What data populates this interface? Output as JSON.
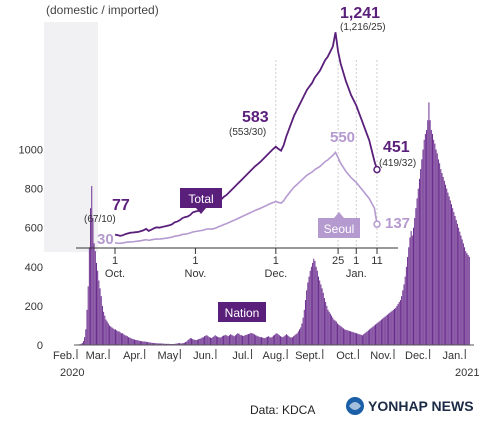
{
  "subtitle": "(domestic / imported)",
  "source": "Data: KDCA",
  "brand": "YONHAP NEWS",
  "colors": {
    "total": "#5a1f7a",
    "seoul": "#b59ad0",
    "nation_bar": "#6b2d8e",
    "tag_total": "#5a1f7a",
    "tag_seoul": "#b59ad0",
    "axis_text": "#333333",
    "panel": "#f1f1f3"
  },
  "chart_data": [
    {
      "type": "bar",
      "name": "nation",
      "series_label": "Nation",
      "yticks": [
        "1000",
        "800",
        "600",
        "400",
        "200",
        "0"
      ],
      "ytick_values": [
        1000,
        800,
        600,
        400,
        200,
        0
      ],
      "ylim": [
        0,
        1100
      ],
      "x_labels": [
        "Feb.",
        "Mar.",
        "Apr.",
        "May",
        "Jun.",
        "Jul.",
        "Aug.",
        "Sept.",
        "Oct.",
        "Nov.",
        "Dec.",
        "Jan."
      ],
      "year_labels": {
        "start": "2020",
        "end": "2021"
      },
      "segments": [
        {
          "period": "Feb.",
          "values": [
            2,
            3,
            4,
            6,
            10,
            20,
            40,
            80,
            180,
            300,
            500,
            700,
            813,
            650,
            520,
            480,
            420,
            380,
            330,
            290,
            250,
            200,
            170,
            150,
            130,
            120,
            110
          ]
        },
        {
          "period": "Mar.",
          "values": [
            100,
            95,
            90,
            85,
            80,
            80,
            75,
            70,
            70,
            65,
            60,
            60,
            55,
            50,
            48,
            45,
            40,
            38,
            35,
            32,
            30,
            28,
            26,
            25,
            24,
            22,
            20,
            20,
            18,
            18
          ]
        },
        {
          "period": "Apr.",
          "values": [
            18,
            16,
            15,
            14,
            13,
            12,
            11,
            10,
            10,
            9,
            9,
            8,
            8,
            8,
            8,
            7,
            7,
            6,
            6,
            6,
            6,
            5,
            5,
            5,
            5,
            6,
            7,
            8,
            9,
            10
          ]
        },
        {
          "period": "May",
          "values": [
            8,
            8,
            10,
            12,
            15,
            18,
            25,
            30,
            35,
            34,
            30,
            28,
            26,
            25,
            27,
            30,
            32,
            34,
            38,
            40,
            45,
            48,
            50,
            45,
            40,
            38,
            36,
            40,
            45,
            50
          ]
        },
        {
          "period": "Jun.",
          "values": [
            45,
            42,
            40,
            38,
            40,
            45,
            48,
            50,
            52,
            48,
            45,
            50,
            55,
            52,
            48,
            45,
            50,
            55,
            60,
            58,
            52,
            50,
            48,
            46,
            50,
            52,
            54,
            56,
            58,
            62
          ]
        },
        {
          "period": "Jul.",
          "values": [
            60,
            58,
            55,
            50,
            48,
            45,
            42,
            40,
            40,
            38,
            36,
            35,
            40,
            42,
            45,
            40,
            38,
            42,
            48,
            52,
            58,
            60,
            55,
            50,
            45,
            42,
            40,
            45,
            50,
            55
          ]
        },
        {
          "period": "Aug.",
          "values": [
            50,
            45,
            40,
            38,
            40,
            45,
            50,
            55,
            60,
            70,
            80,
            90,
            110,
            140,
            180,
            230,
            280,
            320,
            350,
            380,
            400,
            420,
            441,
            430,
            400,
            380,
            350,
            330,
            310,
            290
          ]
        },
        {
          "period": "Sept.",
          "values": [
            267,
            240,
            220,
            200,
            180,
            170,
            160,
            150,
            140,
            130,
            125,
            120,
            110,
            105,
            100,
            95,
            90,
            85,
            80,
            78,
            76,
            74,
            72,
            70,
            68,
            66,
            64,
            62,
            60,
            58
          ]
        },
        {
          "period": "Oct.",
          "values": [
            56,
            54,
            52,
            50,
            55,
            60,
            65,
            70,
            75,
            80,
            85,
            90,
            95,
            100,
            105,
            110,
            115,
            120,
            125,
            130,
            135,
            140,
            145,
            150,
            155,
            160,
            165,
            170,
            175,
            180
          ]
        },
        {
          "period": "Nov.",
          "values": [
            185,
            190,
            200,
            210,
            220,
            230,
            250,
            280,
            310,
            350,
            400,
            450,
            500,
            550,
            583,
            560,
            600,
            650,
            700,
            750,
            800,
            850,
            900,
            950,
            1000,
            1050,
            1080,
            1100,
            1150,
            1241
          ]
        },
        {
          "period": "Dec.",
          "values": [
            1150,
            1100,
            1080,
            1050,
            1030,
            1000,
            980,
            950,
            930,
            900,
            880,
            860,
            840,
            820,
            800,
            780,
            760,
            740,
            720,
            700,
            680,
            660,
            640,
            620,
            600,
            580,
            560,
            540,
            520,
            500
          ]
        },
        {
          "period": "Jan.",
          "values": [
            480,
            470,
            460,
            451
          ]
        }
      ]
    },
    {
      "type": "line",
      "name": "total",
      "series_label": "Total",
      "x_labels": [
        "1",
        "1",
        "1",
        "25",
        "1",
        "11"
      ],
      "x_label_months": [
        "Oct.",
        "Nov.",
        "Dec.",
        "",
        "Jan.",
        ""
      ],
      "ylim": [
        0,
        1300
      ],
      "values": [
        77,
        74,
        70,
        73,
        80,
        84,
        88,
        89,
        91,
        93,
        97,
        102,
        110,
        98,
        105,
        113,
        119,
        117,
        120,
        124,
        127,
        131,
        136,
        148,
        152,
        160,
        172,
        178,
        181,
        190,
        205,
        210,
        213,
        222,
        225,
        236,
        240,
        238,
        245,
        255,
        270,
        280,
        295,
        305,
        320,
        335,
        350,
        365,
        380,
        395,
        410,
        425,
        440,
        455,
        470,
        482,
        495,
        510,
        525,
        540,
        555,
        570,
        583,
        570,
        560,
        590,
        640,
        680,
        720,
        760,
        790,
        820,
        850,
        880,
        910,
        930,
        950,
        980,
        1000,
        1020,
        1050,
        1080,
        1100,
        1130,
        1160,
        1241,
        1130,
        1060,
        1010,
        960,
        920,
        880,
        850,
        820,
        780,
        740,
        700,
        660,
        620,
        560,
        500,
        451
      ],
      "annotations": [
        {
          "value": "77",
          "detail": "(67/10)"
        },
        {
          "value": "583",
          "detail": "(553/30)"
        },
        {
          "value": "1,241",
          "detail": "(1,216/25)"
        },
        {
          "value": "451",
          "detail": "(419/32)"
        }
      ]
    },
    {
      "type": "line",
      "name": "seoul",
      "series_label": "Seoul",
      "ylim": [
        0,
        1300
      ],
      "values": [
        30,
        28,
        27,
        29,
        32,
        34,
        35,
        36,
        38,
        40,
        42,
        45,
        48,
        44,
        47,
        50,
        52,
        51,
        53,
        55,
        57,
        60,
        62,
        68,
        70,
        73,
        78,
        80,
        82,
        87,
        92,
        95,
        97,
        100,
        102,
        108,
        110,
        108,
        111,
        116,
        123,
        128,
        135,
        140,
        147,
        154,
        160,
        167,
        174,
        181,
        188,
        195,
        202,
        209,
        216,
        222,
        228,
        235,
        242,
        249,
        256,
        262,
        268,
        262,
        258,
        271,
        294,
        313,
        332,
        350,
        363,
        377,
        391,
        405,
        419,
        428,
        437,
        451,
        460,
        469,
        483,
        497,
        506,
        520,
        533,
        550,
        520,
        487,
        464,
        441,
        423,
        405,
        391,
        377,
        359,
        340,
        322,
        303,
        285,
        257,
        230,
        137
      ],
      "annotations": [
        {
          "value": "30"
        },
        {
          "value": "550"
        },
        {
          "value": "137"
        }
      ]
    }
  ]
}
